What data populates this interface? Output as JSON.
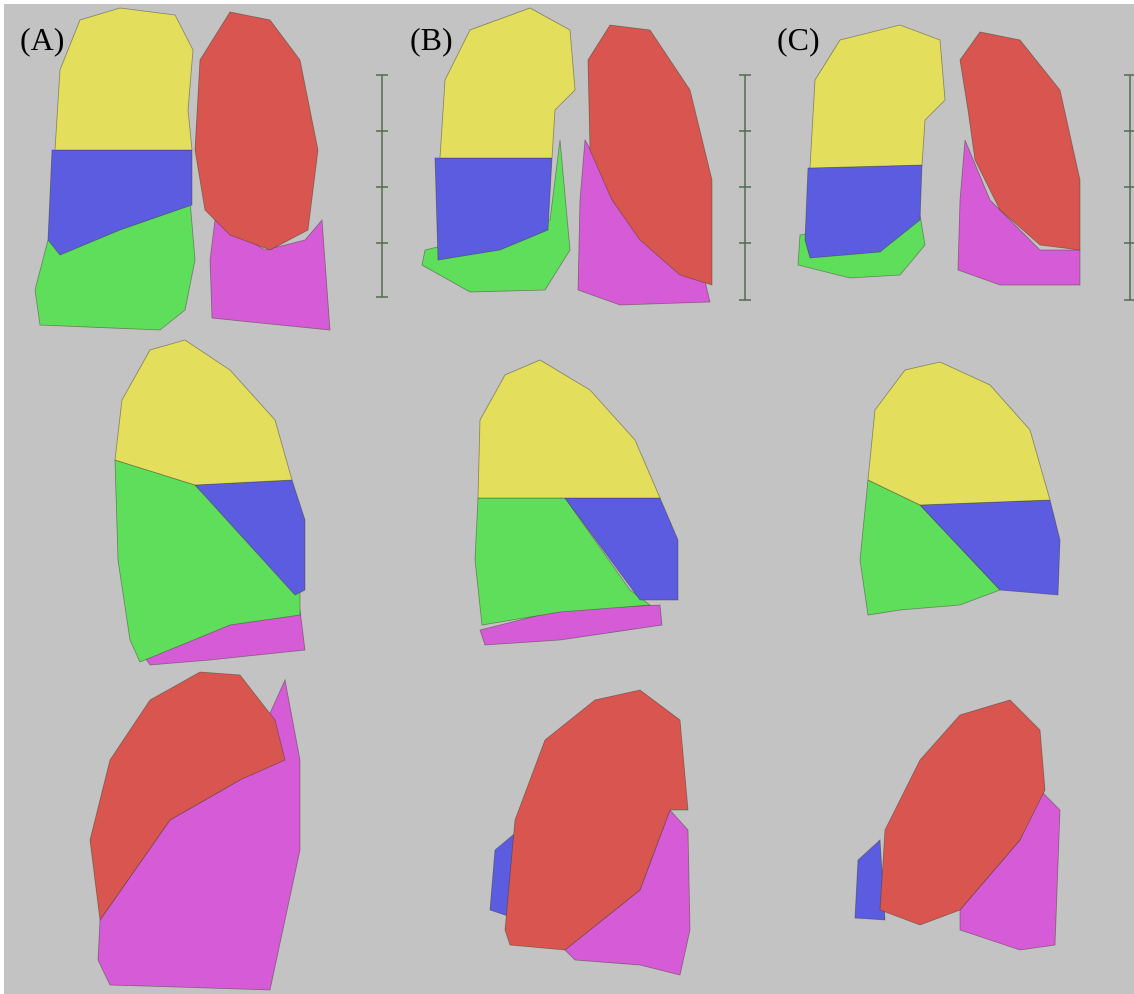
{
  "labels": [
    "(A)",
    "(B)",
    "(C)"
  ]
}
